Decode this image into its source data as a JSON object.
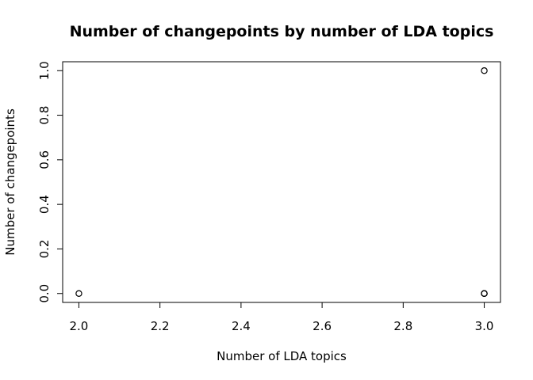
{
  "chart_data": {
    "type": "scatter",
    "title": "Number of changepoints by number of LDA topics",
    "xlabel": "Number of LDA topics",
    "ylabel": "Number of changepoints",
    "xlim": [
      1.96,
      3.04
    ],
    "ylim": [
      -0.04,
      1.04
    ],
    "xticks": [
      2.0,
      2.2,
      2.4,
      2.6,
      2.8,
      3.0
    ],
    "xtick_labels": [
      "2.0",
      "2.2",
      "2.4",
      "2.6",
      "2.8",
      "3.0"
    ],
    "yticks": [
      0.0,
      0.2,
      0.4,
      0.6,
      0.8,
      1.0
    ],
    "ytick_labels": [
      "0.0",
      "0.2",
      "0.4",
      "0.6",
      "0.8",
      "1.0"
    ],
    "grid": false,
    "marker": "open-circle",
    "series": [
      {
        "x": [
          2,
          3,
          3,
          3,
          3
        ],
        "y": [
          0,
          1,
          0,
          0,
          0
        ]
      }
    ]
  }
}
